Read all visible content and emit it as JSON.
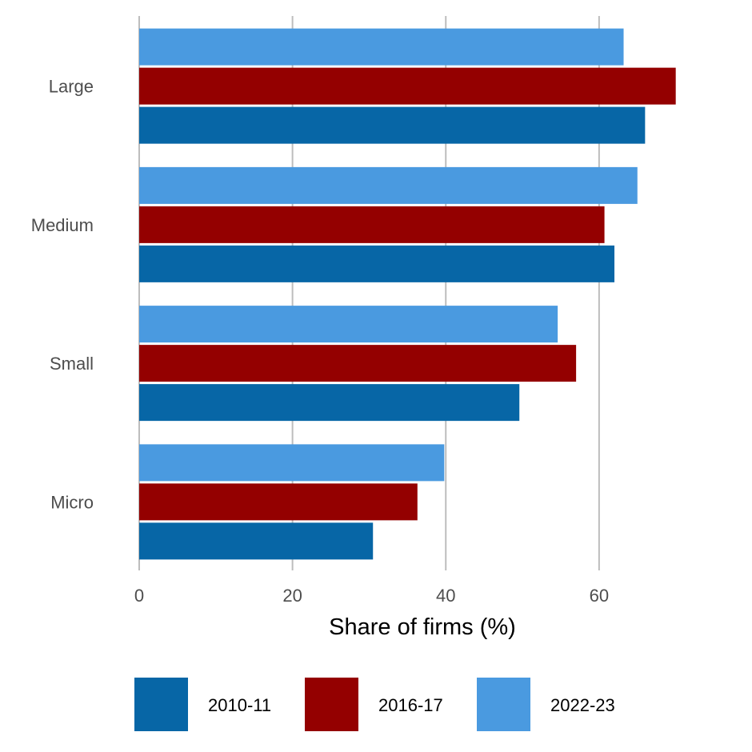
{
  "chart_data": {
    "type": "bar",
    "orientation": "horizontal",
    "categories": [
      "Large",
      "Medium",
      "Small",
      "Micro"
    ],
    "series": [
      {
        "name": "2010-11",
        "color": "#0766a6",
        "values": [
          66.0,
          62.0,
          49.6,
          30.5
        ]
      },
      {
        "name": "2016-17",
        "color": "#940000",
        "values": [
          70.0,
          60.7,
          57.0,
          36.3
        ]
      },
      {
        "name": "2022-23",
        "color": "#4a9ae0",
        "values": [
          63.2,
          65.0,
          54.6,
          39.8
        ]
      }
    ],
    "xticks": [
      "0",
      "20",
      "40",
      "60"
    ],
    "xlim": [
      0,
      74
    ],
    "xlabel": "Share of firms (%)",
    "ylabel": "",
    "title": "",
    "grid": "vertical major gridlines",
    "legend_position": "bottom"
  }
}
